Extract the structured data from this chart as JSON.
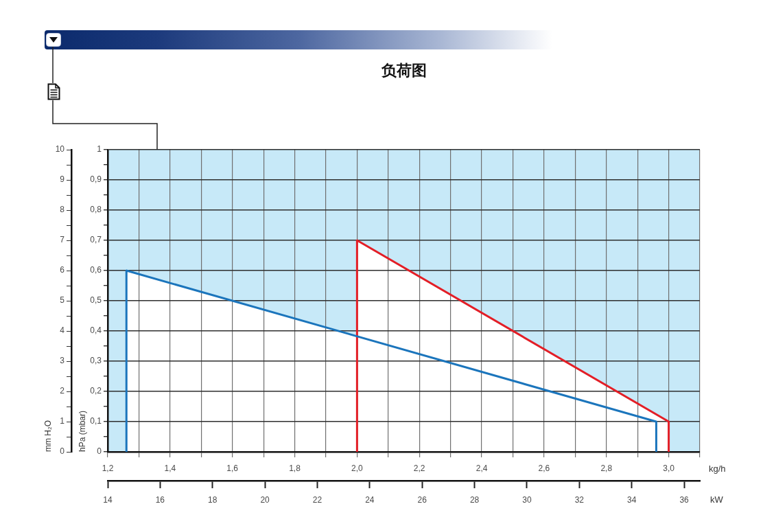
{
  "chart_data": {
    "type": "line",
    "title": "负荷图",
    "xlabel": "kg/h",
    "ylabel": "hPa (mbar)",
    "y2label": "mm H₂O",
    "x2label": "kW",
    "xlim": [
      1.2,
      3.1
    ],
    "xticks": [
      {
        "value": 1.2,
        "label": "1,2"
      },
      {
        "value": 1.3,
        "label": null
      },
      {
        "value": 1.4,
        "label": "1,4"
      },
      {
        "value": 1.5,
        "label": null
      },
      {
        "value": 1.6,
        "label": "1,6"
      },
      {
        "value": 1.7,
        "label": null
      },
      {
        "value": 1.8,
        "label": "1,8"
      },
      {
        "value": 1.9,
        "label": null
      },
      {
        "value": 2.0,
        "label": "2,0"
      },
      {
        "value": 2.1,
        "label": null
      },
      {
        "value": 2.2,
        "label": "2,2"
      },
      {
        "value": 2.3,
        "label": null
      },
      {
        "value": 2.4,
        "label": "2,4"
      },
      {
        "value": 2.5,
        "label": null
      },
      {
        "value": 2.6,
        "label": "2,6"
      },
      {
        "value": 2.7,
        "label": null
      },
      {
        "value": 2.8,
        "label": "2,8"
      },
      {
        "value": 2.9,
        "label": null
      },
      {
        "value": 3.0,
        "label": "3,0"
      },
      {
        "value": 3.1,
        "label": null
      }
    ],
    "ylim": [
      0,
      1
    ],
    "yticks": [
      0,
      {
        "value": 0.05,
        "label": null
      },
      {
        "value": 0.1,
        "label": "0,1"
      },
      {
        "value": 0.15,
        "label": null
      },
      {
        "value": 0.2,
        "label": "0,2"
      },
      {
        "value": 0.25,
        "label": null
      },
      {
        "value": 0.3,
        "label": "0,3"
      },
      {
        "value": 0.35,
        "label": null
      },
      {
        "value": 0.4,
        "label": "0,4"
      },
      {
        "value": 0.45,
        "label": null
      },
      {
        "value": 0.5,
        "label": "0,5"
      },
      {
        "value": 0.55,
        "label": null
      },
      {
        "value": 0.6,
        "label": "0,6"
      },
      {
        "value": 0.65,
        "label": null
      },
      {
        "value": 0.7,
        "label": "0,7"
      },
      {
        "value": 0.75,
        "label": null
      },
      {
        "value": 0.8,
        "label": "0,8"
      },
      {
        "value": 0.85,
        "label": null
      },
      {
        "value": 0.9,
        "label": "0,9"
      },
      {
        "value": 0.95,
        "label": null
      },
      1
    ],
    "y2lim": [
      0,
      10
    ],
    "y2ticks": [
      0,
      {
        "value": 0.5,
        "label": null
      },
      1,
      {
        "value": 1.5,
        "label": null
      },
      2,
      {
        "value": 2.5,
        "label": null
      },
      3,
      {
        "value": 3.5,
        "label": null
      },
      4,
      {
        "value": 4.5,
        "label": null
      },
      5,
      {
        "value": 5.5,
        "label": null
      },
      6,
      {
        "value": 6.5,
        "label": null
      },
      7,
      {
        "value": 7.5,
        "label": null
      },
      8,
      {
        "value": 8.5,
        "label": null
      },
      9,
      {
        "value": 9.5,
        "label": null
      },
      10
    ],
    "x2lim": [
      14,
      36.6
    ],
    "x2ticks": [
      14,
      16,
      18,
      20,
      22,
      24,
      26,
      28,
      30,
      32,
      34,
      36
    ],
    "grid": true,
    "legend": false,
    "marker": "none",
    "series": [
      {
        "color": "#1b75bc",
        "x": [
          1.26,
          1.26,
          2.96,
          2.96
        ],
        "values": [
          0,
          0.6,
          0.1,
          0
        ]
      },
      {
        "color": "#e31e26",
        "x": [
          2.0,
          2.0,
          3.0,
          3.0
        ],
        "values": [
          0,
          0.7,
          0.1,
          0
        ]
      }
    ]
  }
}
